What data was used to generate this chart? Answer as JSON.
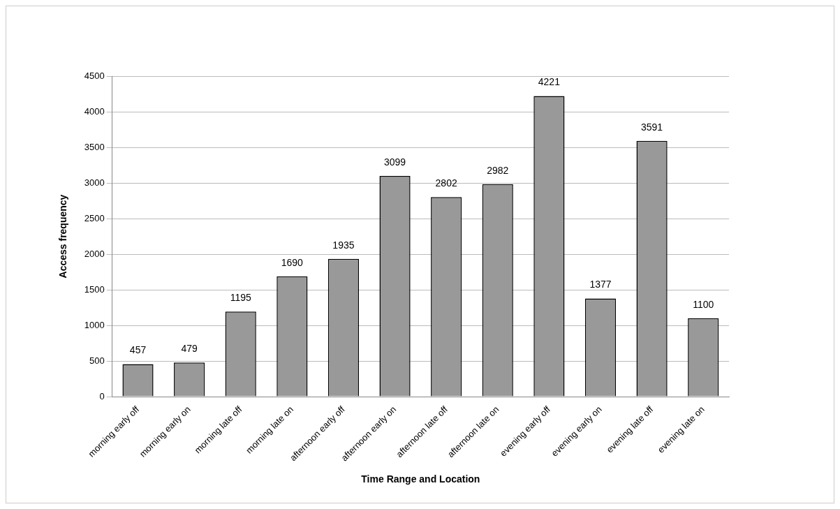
{
  "chart_data": {
    "type": "bar",
    "xlabel": "Time Range and Location",
    "ylabel": "Access frequency",
    "categories": [
      "morning early off",
      "morning early on",
      "morning late off",
      "morning late on",
      "afternoon early off",
      "afternoon early on",
      "afternoon late off",
      "afternoon late on",
      "evening early off",
      "evening early on",
      "evening late off",
      "evening late on"
    ],
    "values": [
      457,
      479,
      1195,
      1690,
      1935,
      3099,
      2802,
      2982,
      4221,
      1377,
      3591,
      1100
    ],
    "color": "#999999",
    "ylim": [
      0,
      4500
    ],
    "yticks": [
      0,
      500,
      1000,
      1500,
      2000,
      2500,
      3000,
      3500,
      4000,
      4500
    ],
    "grid": "y",
    "data_labels": true
  }
}
